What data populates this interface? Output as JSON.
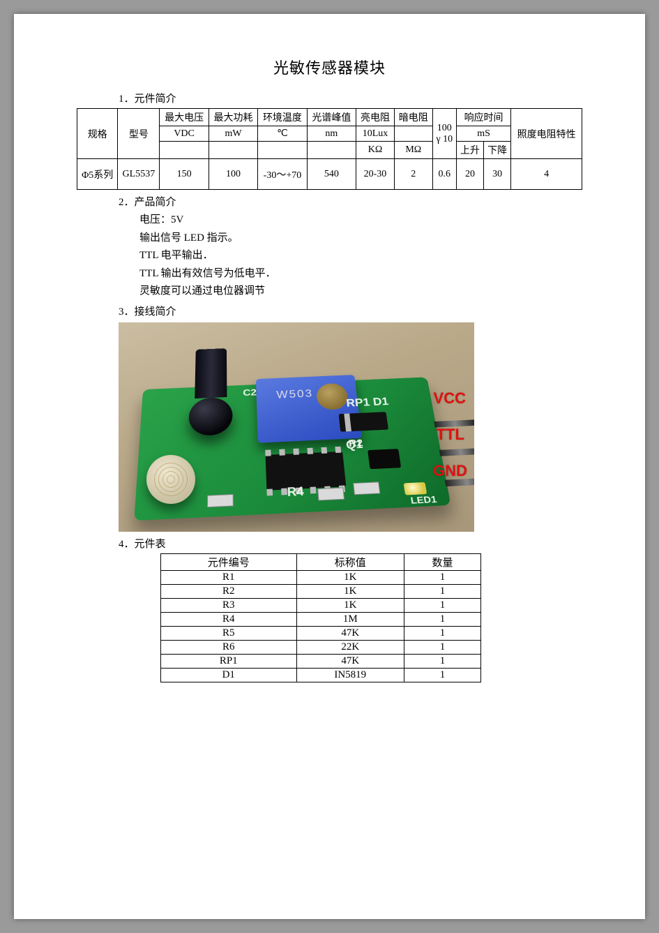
{
  "title": "光敏传感器模块",
  "sections": {
    "s1": "1．元件简介",
    "s2": "2．产品简介",
    "s3": "3．接线简介",
    "s4": "4．元件表"
  },
  "spec_table": {
    "headers": {
      "spec": "规格",
      "model": "型号",
      "vmax": "最大电压",
      "pmax": "最大功耗",
      "temp": "环境温度",
      "peak": "光谱峰值",
      "light_r": "亮电阻",
      "dark_r": "暗电阻",
      "gamma_top": "100",
      "gamma_bottom": "γ 10",
      "resp": "响应时间",
      "lux_char": "照度电阻特性",
      "unit_vdc": "VDC",
      "unit_mw": "mW",
      "unit_c": "℃",
      "unit_nm": "nm",
      "unit_lux": "10Lux",
      "unit_ms": "mS",
      "unit_kohm": "KΩ",
      "unit_mohm": "MΩ",
      "rise": "上升",
      "fall": "下降"
    },
    "row": {
      "spec": "Φ5系列",
      "model": "GL5537",
      "vmax": "150",
      "pmax": "100",
      "temp": "-30～+70",
      "peak": "540",
      "light_r": "20-30",
      "dark_r": "2",
      "gamma": "0.6",
      "rise": "20",
      "fall": "30",
      "lux_char": "4"
    }
  },
  "product_intro": {
    "l1": "电压：5V",
    "l2": "输出信号 LED 指示。",
    "l3": "TTL 电平输出．",
    "l4": "TTL 输出有效信号为低电平．",
    "l5": "灵敏度可以通过电位器调节"
  },
  "photo": {
    "pot_label": "W503",
    "silk_rp1": "RP1 D1",
    "silk_r2": "R2",
    "silk_q1": "Q1",
    "silk_r4": "R4",
    "silk_led": "LED1",
    "silk_c2": "C2",
    "pin_vcc": "VCC",
    "pin_ttl": "TTL",
    "pin_gnd": "GND"
  },
  "comp_table": {
    "headers": {
      "id": "元件编号",
      "val": "标称值",
      "qty": "数量"
    },
    "rows": [
      {
        "id": "R1",
        "val": "1K",
        "qty": "1"
      },
      {
        "id": "R2",
        "val": "1K",
        "qty": "1"
      },
      {
        "id": "R3",
        "val": "1K",
        "qty": "1"
      },
      {
        "id": "R4",
        "val": "1M",
        "qty": "1"
      },
      {
        "id": "R5",
        "val": "47K",
        "qty": "1"
      },
      {
        "id": "R6",
        "val": "22K",
        "qty": "1"
      },
      {
        "id": "RP1",
        "val": "47K",
        "qty": "1"
      },
      {
        "id": "D1",
        "val": "IN5819",
        "qty": "1"
      }
    ]
  }
}
